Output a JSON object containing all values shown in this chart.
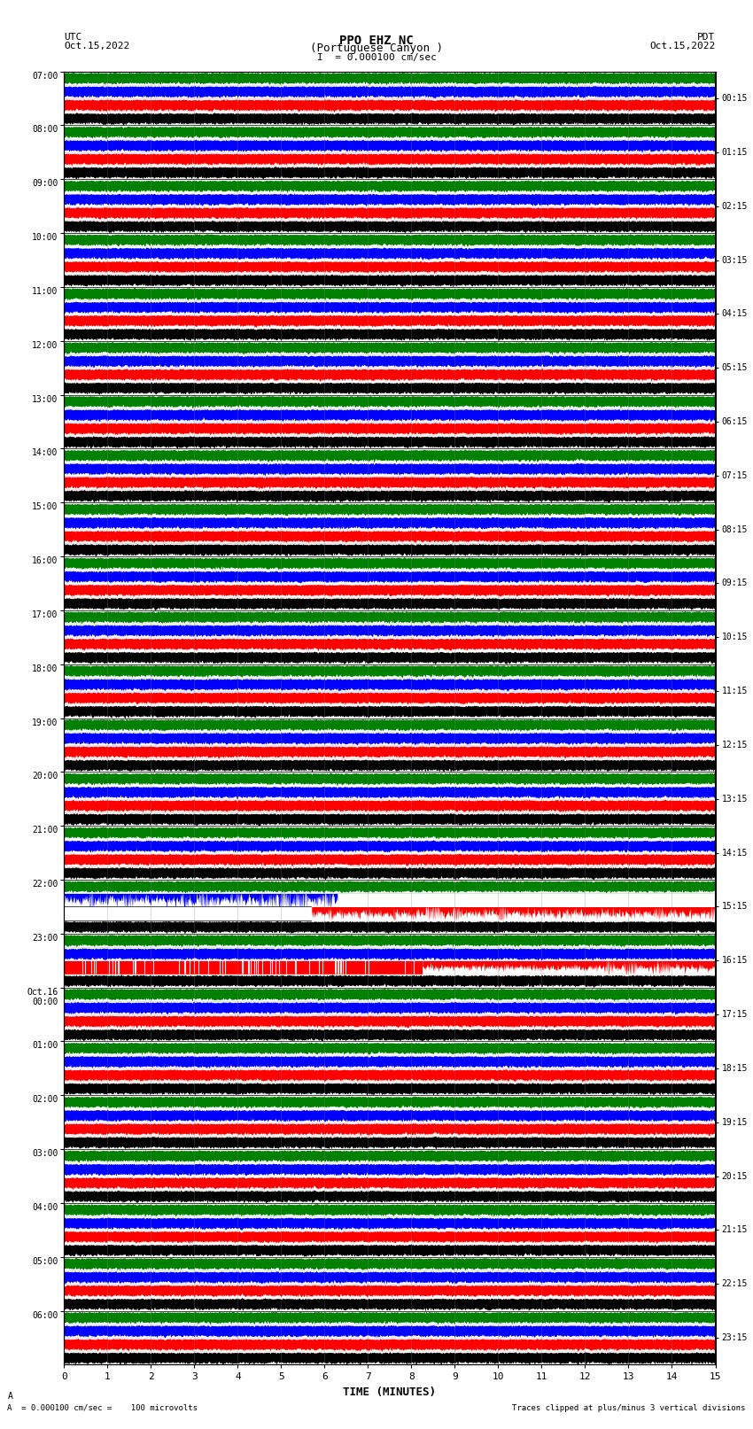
{
  "title_line1": "PPO EHZ NC",
  "title_line2": "(Portuguese Canyon )",
  "title_line3": "I = 0.000100 cm/sec",
  "top_left_label1": "UTC",
  "top_left_label2": "Oct.15,2022",
  "top_right_label1": "PDT",
  "top_right_label2": "Oct.15,2022",
  "bottom_xlabel": "TIME (MINUTES)",
  "bottom_note_left": "A  = 0.000100 cm/sec =    100 microvolts",
  "bottom_note_right": "Traces clipped at plus/minus 3 vertical divisions",
  "utc_labels": [
    "07:00",
    "08:00",
    "09:00",
    "10:00",
    "11:00",
    "12:00",
    "13:00",
    "14:00",
    "15:00",
    "16:00",
    "17:00",
    "18:00",
    "19:00",
    "20:00",
    "21:00",
    "22:00",
    "23:00",
    "Oct.16\n00:00",
    "01:00",
    "02:00",
    "03:00",
    "04:00",
    "05:00",
    "06:00"
  ],
  "pdt_labels": [
    "00:15",
    "01:15",
    "02:15",
    "03:15",
    "04:15",
    "05:15",
    "06:15",
    "07:15",
    "08:15",
    "09:15",
    "10:15",
    "11:15",
    "12:15",
    "13:15",
    "14:15",
    "15:15",
    "16:15",
    "17:15",
    "18:15",
    "19:15",
    "20:15",
    "21:15",
    "22:15",
    "23:15"
  ],
  "num_rows": 24,
  "colors_order": [
    "black",
    "red",
    "blue",
    "green"
  ],
  "bg_color": "#ffffff",
  "xmin": 0,
  "xmax": 15,
  "xticks": [
    0,
    1,
    2,
    3,
    4,
    5,
    6,
    7,
    8,
    9,
    10,
    11,
    12,
    13,
    14,
    15
  ],
  "scale_bar_height": 0.006,
  "n_samples": 3000,
  "clipped_rows_red": [
    7,
    8
  ],
  "clipped_row_blue": 8
}
